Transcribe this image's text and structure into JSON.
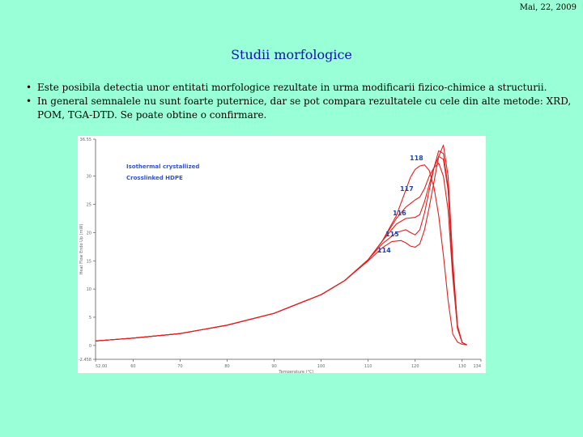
{
  "header": {
    "date": "Mai, 22, 2009"
  },
  "slide": {
    "title": "Studii morfologice",
    "bullets": [
      "Este posibila detectia unor entitati morfologice rezultate in urma modificarii fizico-chimice a structurii.",
      "In general semnalele nu sunt foarte puternice, dar se pot compara rezultatele cu cele din alte metode: XRD, POM, TGA-DTD. Se poate obtine o confirmare."
    ],
    "bullet_glyph": "•"
  },
  "chart_data": {
    "type": "line",
    "title": "",
    "legend": [
      "Isothermal crystallized",
      "Crosslinked HDPE"
    ],
    "legend_color": "#3355cc",
    "xlabel": "Temperature (°C)",
    "ylabel": "Heat Flow Endo Up (mW)",
    "xlim": [
      52,
      134
    ],
    "ylim": [
      -2.458,
      36.55
    ],
    "x_ticks": [
      52,
      60,
      70,
      80,
      90,
      100,
      110,
      120,
      130,
      134
    ],
    "x_tick_labels": [
      "52.00",
      "60",
      "70",
      "80",
      "90",
      "100",
      "110",
      "120",
      "130",
      "134"
    ],
    "y_ticks": [
      -2.458,
      0,
      5,
      10,
      15,
      20,
      25,
      30,
      36.55
    ],
    "y_tick_labels": [
      "-2.458",
      "0",
      "5",
      "10",
      "15",
      "20",
      "25",
      "30",
      "36.55"
    ],
    "series_color": "#e02020",
    "series": [
      {
        "name": "118",
        "x": [
          52,
          60,
          70,
          80,
          90,
          100,
          105,
          110,
          113,
          116,
          118,
          119,
          120,
          121,
          122,
          123,
          124,
          125,
          126,
          127,
          128,
          129,
          130,
          131
        ],
        "y": [
          0.8,
          1.3,
          2.1,
          3.6,
          5.7,
          9.0,
          11.5,
          15.2,
          18.5,
          23.0,
          27.5,
          29.8,
          31.2,
          31.8,
          32.0,
          31.0,
          28.0,
          23.0,
          16.0,
          8.0,
          2.0,
          0.6,
          0.2,
          0.1
        ]
      },
      {
        "name": "117",
        "x": [
          52,
          60,
          70,
          80,
          90,
          100,
          105,
          110,
          113,
          116,
          118,
          120,
          121,
          122,
          123,
          124,
          125,
          126,
          127,
          128,
          129,
          130,
          131
        ],
        "y": [
          0.8,
          1.3,
          2.1,
          3.6,
          5.7,
          9.0,
          11.5,
          15.2,
          18.5,
          22.5,
          24.5,
          25.8,
          26.3,
          27.8,
          30.0,
          31.5,
          32.3,
          30.0,
          24.0,
          12.0,
          3.0,
          0.5,
          0.1
        ]
      },
      {
        "name": "116",
        "x": [
          52,
          60,
          70,
          80,
          90,
          100,
          105,
          110,
          113,
          116,
          118,
          120,
          121,
          122,
          123,
          124,
          125,
          126,
          127,
          128,
          129,
          130,
          131
        ],
        "y": [
          0.8,
          1.3,
          2.1,
          3.6,
          5.7,
          9.0,
          11.5,
          15.2,
          18.5,
          21.5,
          22.5,
          22.7,
          23.2,
          25.5,
          28.5,
          31.5,
          33.5,
          33.0,
          27.5,
          14.0,
          3.5,
          0.5,
          0.1
        ]
      },
      {
        "name": "115",
        "x": [
          52,
          60,
          70,
          80,
          90,
          100,
          105,
          110,
          113,
          116,
          118,
          119,
          120,
          121,
          122,
          123,
          124,
          125,
          126,
          127,
          128,
          129,
          130,
          131
        ],
        "y": [
          0.8,
          1.3,
          2.1,
          3.6,
          5.7,
          9.0,
          11.5,
          15.2,
          18.0,
          20.0,
          20.5,
          20.0,
          19.6,
          20.5,
          23.5,
          27.5,
          31.5,
          34.5,
          34.0,
          28.0,
          13.0,
          3.0,
          0.5,
          0.1
        ]
      },
      {
        "name": "114",
        "x": [
          52,
          60,
          70,
          80,
          90,
          100,
          105,
          110,
          113,
          115,
          117,
          118,
          119,
          120,
          121,
          122,
          123,
          124,
          125,
          126,
          127,
          128,
          129,
          130,
          131
        ],
        "y": [
          0.8,
          1.3,
          2.1,
          3.6,
          5.7,
          9.0,
          11.5,
          15.0,
          17.3,
          18.4,
          18.6,
          18.2,
          17.6,
          17.4,
          18.0,
          20.5,
          24.5,
          29.0,
          33.5,
          35.5,
          30.0,
          15.0,
          3.5,
          0.5,
          0.1
        ]
      }
    ]
  }
}
